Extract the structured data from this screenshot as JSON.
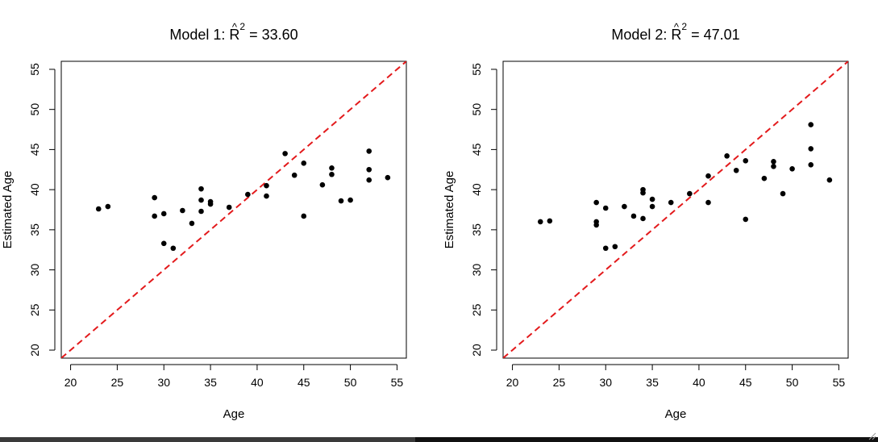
{
  "colors": {
    "points": "#000000",
    "identity_line": "#e31a1c",
    "axes": "#000000",
    "background": "#ffffff"
  },
  "chart_data": [
    {
      "type": "scatter",
      "title": "Model 1: R̂² = 33.60",
      "title_parts": {
        "prefix": "Model 1: ",
        "symbol": "R",
        "hat": "^",
        "superscript": "2",
        "suffix": " = 33.60"
      },
      "xlabel": "Age",
      "ylabel": "Estimated Age",
      "xlim": [
        19,
        56
      ],
      "ylim": [
        19,
        56
      ],
      "xticks": [
        20,
        25,
        30,
        35,
        40,
        45,
        50,
        55
      ],
      "yticks": [
        20,
        25,
        30,
        35,
        40,
        45,
        50,
        55
      ],
      "xtick_labels": [
        "20",
        "25",
        "30",
        "35",
        "40",
        "45",
        "50",
        "55"
      ],
      "ytick_labels": [
        "20",
        "25",
        "30",
        "35",
        "40",
        "45",
        "50",
        "55"
      ],
      "grid": false,
      "reference_line": "y = x (dashed)",
      "points": [
        [
          23,
          37.6
        ],
        [
          24,
          37.9
        ],
        [
          29,
          39.0
        ],
        [
          29,
          36.7
        ],
        [
          30,
          37.0
        ],
        [
          30,
          33.3
        ],
        [
          31,
          32.7
        ],
        [
          32,
          37.4
        ],
        [
          33,
          35.8
        ],
        [
          34,
          40.1
        ],
        [
          34,
          38.7
        ],
        [
          34,
          37.3
        ],
        [
          35,
          38.5
        ],
        [
          35,
          38.2
        ],
        [
          37,
          37.8
        ],
        [
          39,
          39.4
        ],
        [
          41,
          40.5
        ],
        [
          41,
          39.2
        ],
        [
          43,
          44.5
        ],
        [
          44,
          41.8
        ],
        [
          45,
          43.3
        ],
        [
          45,
          36.7
        ],
        [
          47,
          40.6
        ],
        [
          48,
          42.7
        ],
        [
          48,
          41.9
        ],
        [
          49,
          38.6
        ],
        [
          50,
          38.7
        ],
        [
          52,
          44.8
        ],
        [
          52,
          42.5
        ],
        [
          52,
          41.2
        ],
        [
          54,
          41.5
        ]
      ]
    },
    {
      "type": "scatter",
      "title": "Model 2: R̂² = 47.01",
      "title_parts": {
        "prefix": "Model 2: ",
        "symbol": "R",
        "hat": "^",
        "superscript": "2",
        "suffix": " = 47.01"
      },
      "xlabel": "Age",
      "ylabel": "Estimated Age",
      "xlim": [
        19,
        56
      ],
      "ylim": [
        19,
        56
      ],
      "xticks": [
        20,
        25,
        30,
        35,
        40,
        45,
        50,
        55
      ],
      "yticks": [
        20,
        25,
        30,
        35,
        40,
        45,
        50,
        55
      ],
      "xtick_labels": [
        "20",
        "25",
        "30",
        "35",
        "40",
        "45",
        "50",
        "55"
      ],
      "ytick_labels": [
        "20",
        "25",
        "30",
        "35",
        "40",
        "45",
        "50",
        "55"
      ],
      "grid": false,
      "reference_line": "y = x (dashed)",
      "points": [
        [
          23,
          36.0
        ],
        [
          24,
          36.1
        ],
        [
          29,
          38.4
        ],
        [
          29,
          36.0
        ],
        [
          29,
          35.6
        ],
        [
          30,
          37.7
        ],
        [
          30,
          32.7
        ],
        [
          31,
          32.9
        ],
        [
          32,
          37.9
        ],
        [
          33,
          36.7
        ],
        [
          34,
          40.0
        ],
        [
          34,
          39.6
        ],
        [
          34,
          36.4
        ],
        [
          35,
          38.8
        ],
        [
          35,
          37.9
        ],
        [
          37,
          38.4
        ],
        [
          39,
          39.5
        ],
        [
          41,
          41.7
        ],
        [
          41,
          38.4
        ],
        [
          43,
          44.2
        ],
        [
          44,
          42.4
        ],
        [
          45,
          43.6
        ],
        [
          45,
          36.3
        ],
        [
          47,
          41.4
        ],
        [
          48,
          43.5
        ],
        [
          48,
          42.9
        ],
        [
          49,
          39.5
        ],
        [
          50,
          42.6
        ],
        [
          52,
          48.1
        ],
        [
          52,
          45.1
        ],
        [
          52,
          43.1
        ],
        [
          54,
          41.2
        ]
      ]
    }
  ]
}
